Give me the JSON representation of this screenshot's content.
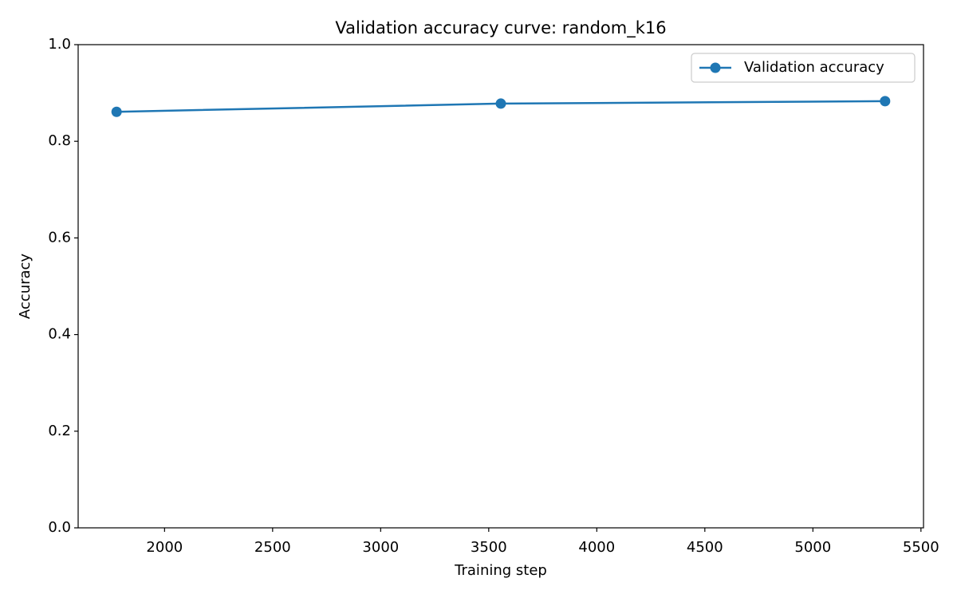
{
  "chart_data": {
    "type": "line",
    "title": "Validation accuracy curve: random_k16",
    "x_label": "Training step",
    "y_label": "Accuracy",
    "x": [
      1778,
      3556,
      5334
    ],
    "series": [
      {
        "name": "Validation accuracy",
        "color": "#1f77b4",
        "values": [
          0.861,
          0.878,
          0.883
        ]
      }
    ],
    "xlim": [
      1600.2,
      5511.8
    ],
    "xticks": [
      2000,
      2500,
      3000,
      3500,
      4000,
      4500,
      5000,
      5500
    ],
    "ylim": [
      0,
      1
    ],
    "yticks": [
      {
        "value": 0,
        "label": "0.0"
      },
      0.2,
      0.4,
      0.6,
      0.8,
      {
        "value": 1,
        "label": "1.0"
      }
    ],
    "grid": false,
    "legend": "upper right",
    "markers": true
  }
}
